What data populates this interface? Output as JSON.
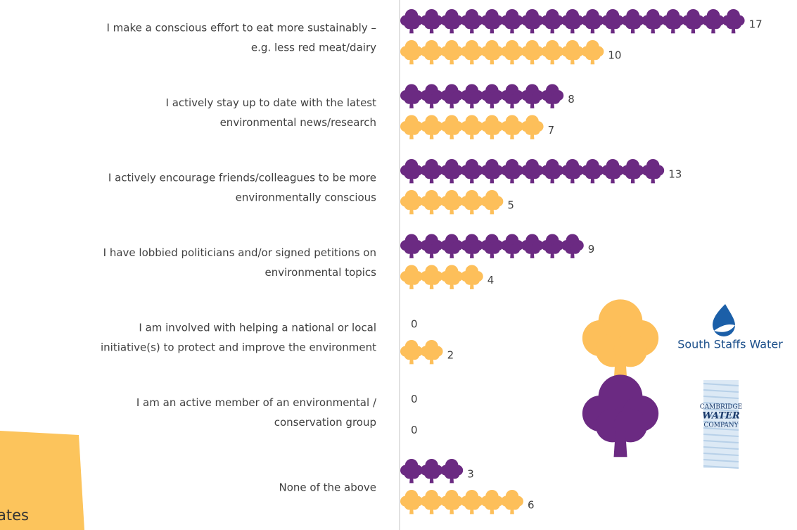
{
  "chart_data": {
    "type": "pictograph",
    "categories": [
      [
        "I make a conscious effort to eat more sustainably  –",
        "e.g. less red meat/dairy"
      ],
      [
        "I actively stay up to date with the latest",
        "environmental news/research"
      ],
      [
        "I actively encourage friends/colleagues to be more",
        "environmentally conscious"
      ],
      [
        "I have lobbied politicians and/or signed petitions on",
        "environmental topics"
      ],
      [
        "I am involved with helping a national or local",
        "initiative(s) to protect and improve the environment"
      ],
      [
        "I am an active member of an environmental /",
        "conservation group"
      ],
      [
        "None of the above"
      ]
    ],
    "series": [
      {
        "name_lines": [
          "CAMBRIDGE",
          "WATER",
          "COMPANY"
        ],
        "color": "#6b2a82",
        "values": [
          17,
          8,
          13,
          9,
          0,
          0,
          3
        ]
      },
      {
        "name": "South Staffs Water",
        "color": "#fdbf5a",
        "values": [
          10,
          7,
          5,
          4,
          2,
          0,
          6
        ]
      }
    ],
    "note": "ates"
  }
}
